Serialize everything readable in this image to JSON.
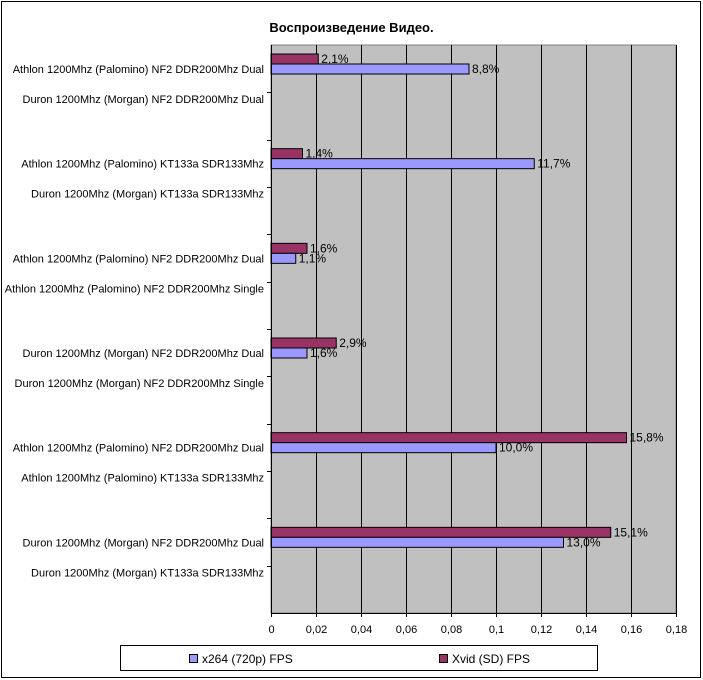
{
  "chart_data": {
    "type": "bar",
    "orientation": "horizontal",
    "title": "Воспроизведение Видео.",
    "xlim": [
      0,
      0.18
    ],
    "x_ticks": [
      "0",
      "0,02",
      "0,04",
      "0,06",
      "0,08",
      "0,1",
      "0,12",
      "0,14",
      "0,16",
      "0,18"
    ],
    "grid": true,
    "legend_position": "bottom",
    "groups": [
      {
        "label_top": "Athlon 1200Mhz (Palomino) NF2 DDR200Mhz Dual",
        "label_bottom": "Duron 1200Mhz (Morgan) NF2 DDR200Mhz Dual",
        "xvid": 0.021,
        "xvid_label": "2,1%",
        "x264": 0.088,
        "x264_label": "8,8%"
      },
      {
        "label_top": "Athlon 1200Mhz (Palomino) KT133a SDR133Mhz",
        "label_bottom": "Duron 1200Mhz (Morgan) KT133a SDR133Mhz",
        "xvid": 0.014,
        "xvid_label": "1,4%",
        "x264": 0.117,
        "x264_label": "11,7%"
      },
      {
        "label_top": "Athlon 1200Mhz (Palomino) NF2 DDR200Mhz Dual",
        "label_bottom": "Athlon 1200Mhz (Palomino) NF2 DDR200Mhz Single",
        "xvid": 0.016,
        "xvid_label": "1,6%",
        "x264": 0.011,
        "x264_label": "1,1%"
      },
      {
        "label_top": "Duron 1200Mhz (Morgan) NF2 DDR200Mhz Dual",
        "label_bottom": "Duron 1200Mhz (Morgan) NF2 DDR200Mhz Single",
        "xvid": 0.029,
        "xvid_label": "2,9%",
        "x264": 0.016,
        "x264_label": "1,6%"
      },
      {
        "label_top": "Athlon 1200Mhz (Palomino) NF2 DDR200Mhz Dual",
        "label_bottom": "Athlon 1200Mhz (Palomino) KT133a SDR133Mhz",
        "xvid": 0.158,
        "xvid_label": "15,8%",
        "x264": 0.1,
        "x264_label": "10,0%"
      },
      {
        "label_top": "Duron 1200Mhz (Morgan) NF2 DDR200Mhz Dual",
        "label_bottom": "Duron 1200Mhz (Morgan) KT133a SDR133Mhz",
        "xvid": 0.151,
        "xvid_label": "15,1%",
        "x264": 0.13,
        "x264_label": "13,0%"
      }
    ],
    "series": [
      {
        "key": "x264",
        "name": "x264 (720p) FPS",
        "color": "#9999ff"
      },
      {
        "key": "xvid",
        "name": "Xvid (SD) FPS",
        "color": "#993366"
      }
    ],
    "plot_background": "#c0c0c0"
  }
}
